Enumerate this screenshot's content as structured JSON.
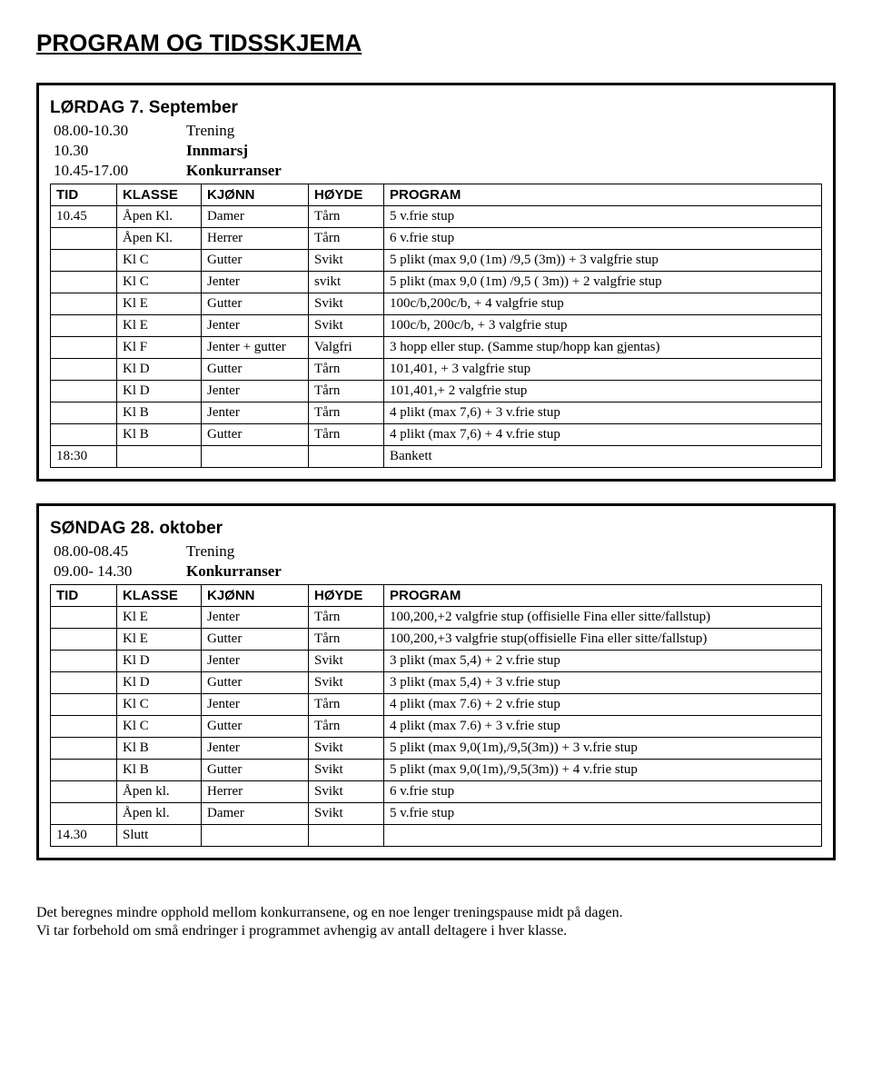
{
  "title": "PROGRAM OG TIDSSKJEMA",
  "box1": {
    "day": "LØRDAG 7. September",
    "pre": [
      {
        "time": "08.00-10.30",
        "label": "Trening",
        "bold": false
      },
      {
        "time": "10.30",
        "label": "Innmarsj",
        "bold": true
      },
      {
        "time": "10.45-17.00",
        "label": "Konkurranser",
        "bold": true
      }
    ],
    "head": [
      "TID",
      "KLASSE",
      "KJØNN",
      "HØYDE",
      "PROGRAM"
    ],
    "rows": [
      [
        "10.45",
        "Åpen Kl.",
        "Damer",
        "Tårn",
        "5 v.frie stup"
      ],
      [
        "",
        "Åpen Kl.",
        "Herrer",
        "Tårn",
        "6 v.frie stup"
      ],
      [
        "",
        "Kl C",
        "Gutter",
        "Svikt",
        "5 plikt (max 9,0 (1m) /9,5 (3m)) + 3 valgfrie stup"
      ],
      [
        "",
        "Kl C",
        "Jenter",
        "svikt",
        "5 plikt (max 9,0 (1m) /9,5 ( 3m)) + 2 valgfrie stup"
      ],
      [
        "",
        "Kl E",
        "Gutter",
        "Svikt",
        "100c/b,200c/b, + 4 valgfrie stup"
      ],
      [
        "",
        "Kl E",
        "Jenter",
        "Svikt",
        "100c/b, 200c/b, + 3 valgfrie stup"
      ],
      [
        "",
        "Kl F",
        "Jenter + gutter",
        "Valgfri",
        "3 hopp eller stup. (Samme stup/hopp kan gjentas)"
      ],
      [
        "",
        "Kl D",
        "Gutter",
        "Tårn",
        "101,401, + 3 valgfrie stup"
      ],
      [
        "",
        "Kl D",
        "Jenter",
        "Tårn",
        "101,401,+ 2 valgfrie stup"
      ],
      [
        "",
        "Kl B",
        "Jenter",
        "Tårn",
        "4 plikt (max 7,6) + 3 v.frie stup"
      ],
      [
        "",
        "Kl B",
        "Gutter",
        "Tårn",
        "4 plikt (max 7,6) + 4 v.frie stup"
      ],
      [
        "18:30",
        "",
        "",
        "",
        "Bankett"
      ]
    ]
  },
  "box2": {
    "day": "SØNDAG 28. oktober",
    "pre": [
      {
        "time": "08.00-08.45",
        "label": "Trening",
        "bold": false
      },
      {
        "time": "09.00- 14.30",
        "label": "Konkurranser",
        "bold": true
      }
    ],
    "head": [
      "TID",
      "KLASSE",
      "KJØNN",
      "HØYDE",
      "PROGRAM"
    ],
    "rows": [
      [
        "",
        "Kl E",
        "Jenter",
        "Tårn",
        "100,200,+2 valgfrie stup (offisielle Fina eller sitte/fallstup)"
      ],
      [
        "",
        "Kl E",
        "Gutter",
        "Tårn",
        "100,200,+3 valgfrie stup(offisielle Fina eller sitte/fallstup)"
      ],
      [
        "",
        "Kl D",
        "Jenter",
        "Svikt",
        "3 plikt (max 5,4) + 2 v.frie stup"
      ],
      [
        "",
        "Kl D",
        "Gutter",
        "Svikt",
        "3 plikt (max 5,4) + 3 v.frie stup"
      ],
      [
        "",
        "Kl C",
        "Jenter",
        "Tårn",
        "4 plikt (max 7.6) + 2 v.frie stup"
      ],
      [
        "",
        "Kl C",
        "Gutter",
        "Tårn",
        "4 plikt (max 7.6) + 3 v.frie stup"
      ],
      [
        "",
        "Kl B",
        "Jenter",
        "Svikt",
        "5 plikt (max 9,0(1m),/9,5(3m)) + 3 v.frie stup"
      ],
      [
        "",
        "Kl B",
        "Gutter",
        "Svikt",
        "5 plikt (max 9,0(1m),/9,5(3m)) + 4 v.frie stup"
      ],
      [
        "",
        "Åpen kl.",
        "Herrer",
        "Svikt",
        "6 v.frie stup"
      ],
      [
        "",
        "Åpen kl.",
        "Damer",
        "Svikt",
        "5 v.frie stup"
      ],
      [
        "14.30",
        "Slutt",
        "",
        "",
        ""
      ]
    ]
  },
  "note1": "Det beregnes mindre opphold mellom konkurransene, og en noe lenger treningspause midt på dagen.",
  "note2": "Vi tar forbehold om små endringer i programmet avhengig av antall deltagere i hver klasse."
}
